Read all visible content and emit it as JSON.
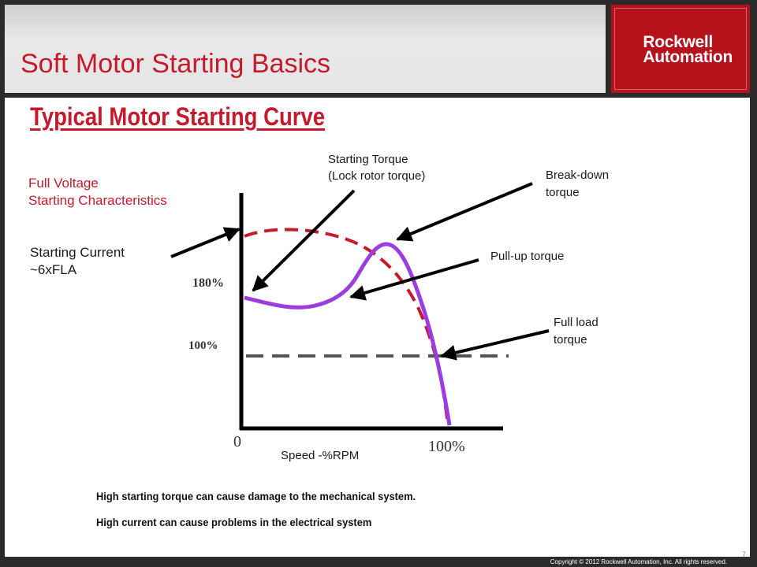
{
  "slide": {
    "title": "Soft Motor Starting Basics",
    "logo_line1": "Rockwell",
    "logo_line2": "Automation",
    "copyright": "Copyright © 2012 Rockwell Automation, Inc. All rights reserved.",
    "page_number": "7"
  },
  "diagram": {
    "heading": "Typical Motor Starting Curve",
    "full_voltage_line1": "Full Voltage",
    "full_voltage_line2": "Starting Characteristics",
    "starting_current_line1": "Starting Current",
    "starting_current_line2": "~6xFLA",
    "starting_torque_line1": "Starting Torque",
    "starting_torque_line2": "(Lock rotor torque)",
    "breakdown_line1": "Break-down",
    "breakdown_line2": "torque",
    "pullup": "Pull-up torque",
    "fullload_line1": "Full load",
    "fullload_line2": "torque",
    "y_tick_180": "180%",
    "y_tick_100": "100%",
    "x_tick_0": "0",
    "x_tick_100": "100%",
    "x_label": "Speed -%RPM",
    "colors": {
      "torque_curve": "#9b3de0",
      "current_curve": "#c41a2c",
      "full_load_line": "#555555",
      "accent": "#c41a2c"
    }
  },
  "notes": {
    "line1": "High starting torque can cause damage to the mechanical system.",
    "line2": "High current can cause problems in the electrical system"
  }
}
